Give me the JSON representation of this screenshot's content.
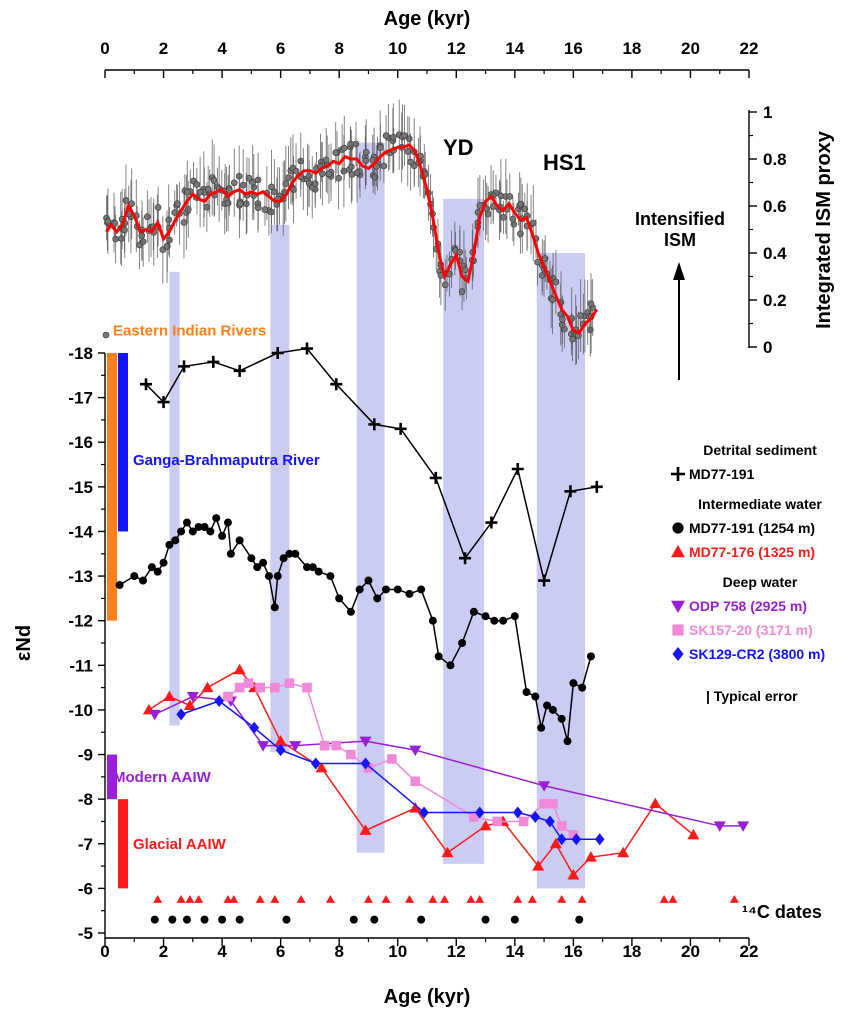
{
  "chart_data": {
    "type": "line",
    "x_axis": {
      "title_top": "Age (kyr)",
      "title_bottom": "Age (kyr)",
      "range": [
        0,
        22
      ],
      "ticks": [
        0,
        2,
        4,
        6,
        8,
        10,
        12,
        14,
        16,
        18,
        20,
        22
      ]
    },
    "left_axis": {
      "title": "εNd",
      "range": [
        -18,
        -5
      ],
      "reversed": true,
      "ticks": [
        -18,
        -17,
        -16,
        -15,
        -14,
        -13,
        -12,
        -11,
        -10,
        -9,
        -8,
        -7,
        -6,
        -5
      ]
    },
    "right_axis": {
      "title": "Integrated ISM proxy",
      "range": [
        0,
        1
      ],
      "ticks": [
        0,
        0.2,
        0.4,
        0.6,
        0.8,
        1
      ],
      "tick_labels": [
        "0",
        "0.2",
        "0.4",
        "0.6",
        "0.8",
        "1"
      ]
    },
    "annotations": {
      "yd": "YD",
      "hs1": "HS1",
      "intensified": [
        "Intensified",
        "ISM"
      ],
      "dates": "¹⁴C dates",
      "typical_error": "| Typical error"
    },
    "shaded_bands": [
      {
        "x0": 2.2,
        "x1": 2.55,
        "ism_top": 0.32,
        "nd_bottom": -9.65
      },
      {
        "x0": 5.65,
        "x1": 6.3,
        "ism_top": 0.52,
        "nd_bottom": -9.05
      },
      {
        "x0": 8.6,
        "x1": 9.55,
        "ism_top": 0.87,
        "nd_bottom": -6.8
      },
      {
        "x0": 11.55,
        "x1": 12.95,
        "ism_top": 0.63,
        "nd_bottom": -6.55
      },
      {
        "x0": 14.75,
        "x1": 16.4,
        "ism_top": 0.4,
        "nd_bottom": -6.0
      }
    ],
    "reference_bars": [
      {
        "name": "Eastern Indian Rivers",
        "color": "#ff7f1a",
        "y_top": -18,
        "y_bottom": -12,
        "col": 0,
        "label_y": -18.5
      },
      {
        "name": "Ganga-Brahmaputra River",
        "color": "#1414ff",
        "y_top": -18,
        "y_bottom": -14,
        "col": 1,
        "label_y": -15.6
      },
      {
        "name": "Modern AAIW",
        "color": "#9a20d6",
        "y_top": -9,
        "y_bottom": -8,
        "col": 0,
        "label_y": -8.5
      },
      {
        "name": "Glacial AAIW",
        "color": "#ff1a1a",
        "y_top": -8,
        "y_bottom": -6,
        "col": 1,
        "label_y": -7.0
      }
    ],
    "legend": [
      {
        "heading": "Detrital sediment",
        "items": [
          {
            "name": "MD77-191",
            "color": "#000000",
            "marker": "plus"
          }
        ]
      },
      {
        "heading": "Intermediate water",
        "items": [
          {
            "name": "MD77-191 (1254 m)",
            "color": "#000000",
            "marker": "circle"
          },
          {
            "name": "MD77-176 (1325 m)",
            "color": "#ff1a1a",
            "marker": "triangle-up"
          }
        ]
      },
      {
        "heading": "Deep water",
        "items": [
          {
            "name": "ODP 758 (2925 m)",
            "color": "#9a20d6",
            "marker": "triangle-down"
          },
          {
            "name": "SK157-20 (3171 m)",
            "color": "#f08ad8",
            "marker": "square"
          },
          {
            "name": "SK129-CR2 (3800 m)",
            "color": "#1414ff",
            "marker": "diamond"
          }
        ]
      }
    ],
    "ism_series": {
      "name": "Integrated ISM proxy",
      "color": "#ff0000",
      "x": [
        0.05,
        0.2,
        0.4,
        0.6,
        0.8,
        1.0,
        1.2,
        1.4,
        1.6,
        1.8,
        2.0,
        2.2,
        2.4,
        2.6,
        2.8,
        3.0,
        3.2,
        3.4,
        3.6,
        3.8,
        4.0,
        4.2,
        4.4,
        4.6,
        4.8,
        5.0,
        5.2,
        5.4,
        5.6,
        5.8,
        6.0,
        6.2,
        6.4,
        6.6,
        6.8,
        7.0,
        7.2,
        7.4,
        7.6,
        7.8,
        8.0,
        8.2,
        8.4,
        8.6,
        8.8,
        9.0,
        9.2,
        9.4,
        9.6,
        9.8,
        10.0,
        10.2,
        10.4,
        10.6,
        10.8,
        11.0,
        11.2,
        11.4,
        11.6,
        11.8,
        12.0,
        12.2,
        12.4,
        12.6,
        12.8,
        13.0,
        13.2,
        13.4,
        13.6,
        13.8,
        14.0,
        14.2,
        14.4,
        14.6,
        14.8,
        15.0,
        15.2,
        15.4,
        15.6,
        15.8,
        16.0,
        16.2,
        16.4,
        16.6,
        16.8
      ],
      "y": [
        0.49,
        0.52,
        0.49,
        0.52,
        0.6,
        0.56,
        0.49,
        0.5,
        0.49,
        0.53,
        0.46,
        0.49,
        0.54,
        0.58,
        0.62,
        0.65,
        0.63,
        0.62,
        0.65,
        0.66,
        0.67,
        0.64,
        0.66,
        0.67,
        0.65,
        0.66,
        0.65,
        0.66,
        0.64,
        0.62,
        0.62,
        0.65,
        0.7,
        0.73,
        0.75,
        0.75,
        0.74,
        0.76,
        0.77,
        0.79,
        0.78,
        0.81,
        0.8,
        0.8,
        0.77,
        0.76,
        0.78,
        0.81,
        0.83,
        0.84,
        0.85,
        0.85,
        0.86,
        0.83,
        0.76,
        0.67,
        0.55,
        0.4,
        0.3,
        0.35,
        0.39,
        0.3,
        0.28,
        0.4,
        0.55,
        0.62,
        0.64,
        0.6,
        0.58,
        0.61,
        0.57,
        0.54,
        0.55,
        0.48,
        0.4,
        0.34,
        0.28,
        0.22,
        0.16,
        0.13,
        0.07,
        0.06,
        0.1,
        0.12,
        0.16
      ]
    },
    "nd_series": [
      {
        "name": "MD77-191 detrital",
        "color": "#000000",
        "marker": "plus",
        "x": [
          1.4,
          2.0,
          2.7,
          3.7,
          4.6,
          5.9,
          6.9,
          7.9,
          9.2,
          10.1,
          11.3,
          12.3,
          13.2,
          14.1,
          15.0,
          15.9,
          16.8
        ],
        "y": [
          -17.3,
          -16.9,
          -17.7,
          -17.8,
          -17.6,
          -18.0,
          -18.1,
          -17.3,
          -16.4,
          -16.3,
          -15.2,
          -13.4,
          -14.2,
          -15.4,
          -12.9,
          -14.9,
          -15.0
        ]
      },
      {
        "name": "MD77-191 (1254 m)",
        "color": "#000000",
        "marker": "circle",
        "x": [
          0.5,
          1.0,
          1.3,
          1.6,
          1.8,
          2.0,
          2.2,
          2.4,
          2.6,
          2.8,
          3.0,
          3.2,
          3.4,
          3.6,
          3.8,
          4.0,
          4.2,
          4.3,
          4.6,
          5.0,
          5.2,
          5.4,
          5.6,
          5.8,
          5.9,
          6.1,
          6.3,
          6.5,
          6.9,
          7.1,
          7.3,
          7.7,
          8.0,
          8.4,
          8.7,
          9.0,
          9.3,
          9.6,
          10.0,
          10.4,
          10.8,
          11.2,
          11.4,
          11.8,
          12.2,
          12.6,
          13.0,
          13.3,
          13.6,
          14.0,
          14.4,
          14.7,
          14.9,
          15.1,
          15.3,
          15.6,
          15.8,
          16.0,
          16.3,
          16.6
        ],
        "y": [
          -12.8,
          -13.0,
          -12.9,
          -13.2,
          -13.1,
          -13.3,
          -13.7,
          -13.8,
          -14.0,
          -14.2,
          -14.0,
          -14.1,
          -14.1,
          -14.0,
          -14.3,
          -13.9,
          -14.2,
          -13.5,
          -13.8,
          -13.4,
          -13.2,
          -13.3,
          -13.0,
          -12.3,
          -13.0,
          -13.4,
          -13.5,
          -13.5,
          -13.2,
          -13.2,
          -13.1,
          -13.0,
          -12.5,
          -12.2,
          -12.7,
          -12.9,
          -12.5,
          -12.7,
          -12.7,
          -12.6,
          -12.7,
          -12.0,
          -11.2,
          -11.0,
          -11.5,
          -12.2,
          -12.1,
          -12.0,
          -12.0,
          -12.1,
          -10.4,
          -10.3,
          -9.6,
          -10.1,
          -10.0,
          -9.8,
          -9.3,
          -10.6,
          -10.5,
          -11.2
        ]
      },
      {
        "name": "MD77-176 (1325 m)",
        "color": "#ff1a1a",
        "marker": "triangle-up",
        "x": [
          1.5,
          2.2,
          2.9,
          3.5,
          4.6,
          5.1,
          6.0,
          7.4,
          8.9,
          10.6,
          11.7,
          13.0,
          13.6,
          14.8,
          15.4,
          16.0,
          16.6,
          17.7,
          18.8,
          20.1
        ],
        "y": [
          -10.0,
          -10.3,
          -10.1,
          -10.5,
          -10.9,
          -10.5,
          -9.3,
          -8.7,
          -7.3,
          -7.8,
          -6.8,
          -7.4,
          -7.5,
          -6.5,
          -7.0,
          -6.3,
          -6.7,
          -6.8,
          -7.9,
          -7.2
        ]
      },
      {
        "name": "ODP 758 (2925 m)",
        "color": "#9a20d6",
        "marker": "triangle-down",
        "x": [
          1.7,
          3.0,
          4.3,
          5.4,
          6.5,
          8.9,
          10.6,
          15.0,
          21.0,
          21.8
        ],
        "y": [
          -9.9,
          -10.3,
          -10.2,
          -9.2,
          -9.2,
          -9.3,
          -9.1,
          -8.3,
          -7.4,
          -7.4
        ]
      },
      {
        "name": "SK157-20 (3171 m)",
        "color": "#f08ad8",
        "marker": "square",
        "x": [
          4.2,
          4.6,
          4.9,
          5.3,
          5.8,
          6.3,
          6.9,
          7.5,
          7.9,
          8.4,
          9.0,
          9.8,
          10.6,
          12.6,
          13.4,
          14.3,
          15.0,
          15.3,
          15.6,
          16.0
        ],
        "y": [
          -10.3,
          -10.5,
          -10.6,
          -10.5,
          -10.5,
          -10.6,
          -10.5,
          -9.2,
          -9.2,
          -9.0,
          -8.7,
          -8.9,
          -8.4,
          -7.6,
          -7.5,
          -7.5,
          -7.9,
          -7.9,
          -7.4,
          -7.2
        ]
      },
      {
        "name": "SK129-CR2 (3800 m)",
        "color": "#1414ff",
        "marker": "diamond",
        "x": [
          2.6,
          3.9,
          5.1,
          6.0,
          7.2,
          8.9,
          10.9,
          12.8,
          14.1,
          14.7,
          15.2,
          15.6,
          16.1,
          16.9
        ],
        "y": [
          -9.9,
          -10.2,
          -9.6,
          -9.1,
          -8.8,
          -8.8,
          -7.7,
          -7.7,
          -7.7,
          -7.6,
          -7.5,
          -7.1,
          -7.1,
          -7.1
        ]
      }
    ],
    "c14_dates": [
      {
        "marker": "triangle-up",
        "color": "#ff1a1a",
        "y": -5.75,
        "x": [
          1.8,
          2.6,
          2.9,
          3.2,
          4.2,
          4.4,
          5.3,
          5.8,
          6.7,
          7.7,
          9.0,
          9.6,
          10.4,
          11.2,
          11.6,
          12.5,
          12.8,
          14.1,
          14.6,
          15.6,
          16.3,
          19.1,
          19.4,
          21.5
        ]
      },
      {
        "marker": "circle",
        "color": "#000000",
        "y": -5.3,
        "x": [
          1.7,
          2.3,
          2.8,
          3.4,
          4.0,
          4.6,
          6.2,
          8.5,
          9.2,
          10.8,
          13.0,
          14.0,
          16.2
        ]
      }
    ]
  }
}
